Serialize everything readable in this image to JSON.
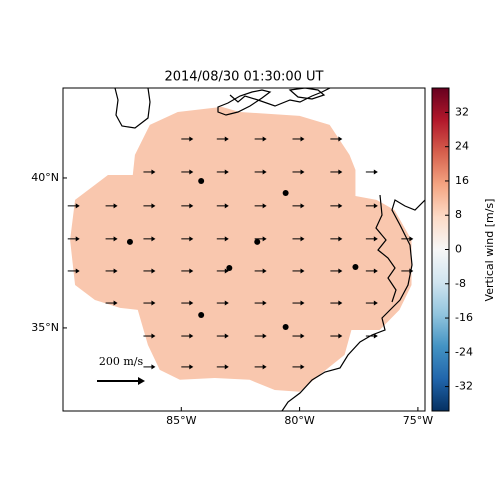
{
  "chart_data": {
    "type": "map",
    "title": "2014/08/30 01:30:00 UT",
    "xlim": [
      -90,
      -74.7
    ],
    "ylim": [
      32.23,
      43
    ],
    "xticks": [
      {
        "value": -85,
        "label": "85°W"
      },
      {
        "value": -80,
        "label": "80°W"
      },
      {
        "value": -75,
        "label": "75°W"
      }
    ],
    "yticks": [
      {
        "value": 35,
        "label": "35°N"
      },
      {
        "value": 40,
        "label": "40°N"
      }
    ],
    "field": {
      "value": 10,
      "color": "#f9c7ae",
      "lon": [
        -85.15,
        -83.29,
        -82.53,
        -80.0,
        -78.73,
        -77.89,
        -77.64,
        -77.64,
        -76.75,
        -75.99,
        -75.27,
        -75.27,
        -75.78,
        -76.62,
        -77.81,
        -78.1,
        -79.16,
        -80.0,
        -81.05,
        -82.11,
        -83.59,
        -85.06,
        -85.91,
        -86.41,
        -86.84,
        -87.59,
        -88.65,
        -89.49,
        -89.7,
        -89.49,
        -88.65,
        -88.1,
        -87.05,
        -86.96,
        -86.33
      ],
      "lat": [
        42.2,
        42.37,
        42.2,
        42.07,
        41.77,
        40.77,
        40.27,
        39.4,
        39.27,
        38.93,
        37.93,
        36.43,
        35.6,
        34.93,
        34.93,
        34.1,
        33.43,
        32.87,
        32.93,
        33.27,
        33.33,
        33.27,
        33.6,
        34.43,
        35.6,
        35.67,
        35.93,
        36.43,
        37.93,
        39.27,
        39.77,
        40.1,
        40.1,
        40.77,
        41.77
      ]
    },
    "sites": {
      "lon": [
        -84.16,
        -80.59,
        -87.17,
        -81.79,
        -82.97,
        -77.64,
        -84.16,
        -80.59
      ],
      "lat": [
        39.9,
        39.5,
        37.87,
        37.87,
        37.0,
        37.03,
        35.43,
        35.03
      ]
    },
    "arrows": {
      "u": 50,
      "v": 0,
      "lon": [
        -85.0,
        -83.5,
        -81.9,
        -80.3,
        -78.7,
        -86.6,
        -85.0,
        -83.5,
        -81.9,
        -80.3,
        -78.7,
        -77.2,
        -89.8,
        -88.2,
        -86.6,
        -85.0,
        -83.5,
        -81.9,
        -80.3,
        -78.7,
        -77.2,
        -89.8,
        -88.2,
        -86.6,
        -85.0,
        -83.5,
        -81.9,
        -80.3,
        -78.7,
        -77.2,
        -75.7,
        -89.8,
        -88.2,
        -86.6,
        -85.0,
        -83.5,
        -81.9,
        -80.3,
        -78.7,
        -77.2,
        -75.7,
        -88.2,
        -86.6,
        -85.0,
        -83.5,
        -81.9,
        -80.3,
        -78.7,
        -77.2,
        -86.6,
        -85.0,
        -83.5,
        -81.9,
        -80.3,
        -78.7,
        -77.2,
        -86.6,
        -85.0,
        -83.5,
        -81.9,
        -80.3
      ],
      "lat": [
        41.3,
        41.3,
        41.3,
        41.3,
        41.3,
        40.2,
        40.2,
        40.2,
        40.2,
        40.2,
        40.2,
        40.2,
        39.07,
        39.07,
        39.07,
        39.07,
        39.07,
        39.07,
        39.07,
        39.07,
        39.07,
        37.97,
        37.97,
        37.97,
        37.97,
        37.97,
        37.97,
        37.97,
        37.97,
        37.97,
        37.97,
        36.9,
        36.9,
        36.9,
        36.9,
        36.9,
        36.9,
        36.9,
        36.9,
        36.9,
        36.9,
        35.83,
        35.83,
        35.83,
        35.83,
        35.83,
        35.83,
        35.83,
        35.83,
        34.73,
        34.73,
        34.73,
        34.73,
        34.73,
        34.73,
        34.73,
        33.7,
        33.7,
        33.7,
        33.7,
        33.7
      ]
    },
    "reference_arrow": {
      "value": 200,
      "label": "200 m/s"
    },
    "colorbar": {
      "label": "Vertical wind [m/s]",
      "clim": [
        -37.7,
        37.7
      ],
      "yticks": [
        -32,
        -24,
        -16,
        -8,
        0,
        8,
        16,
        24,
        32
      ]
    }
  }
}
